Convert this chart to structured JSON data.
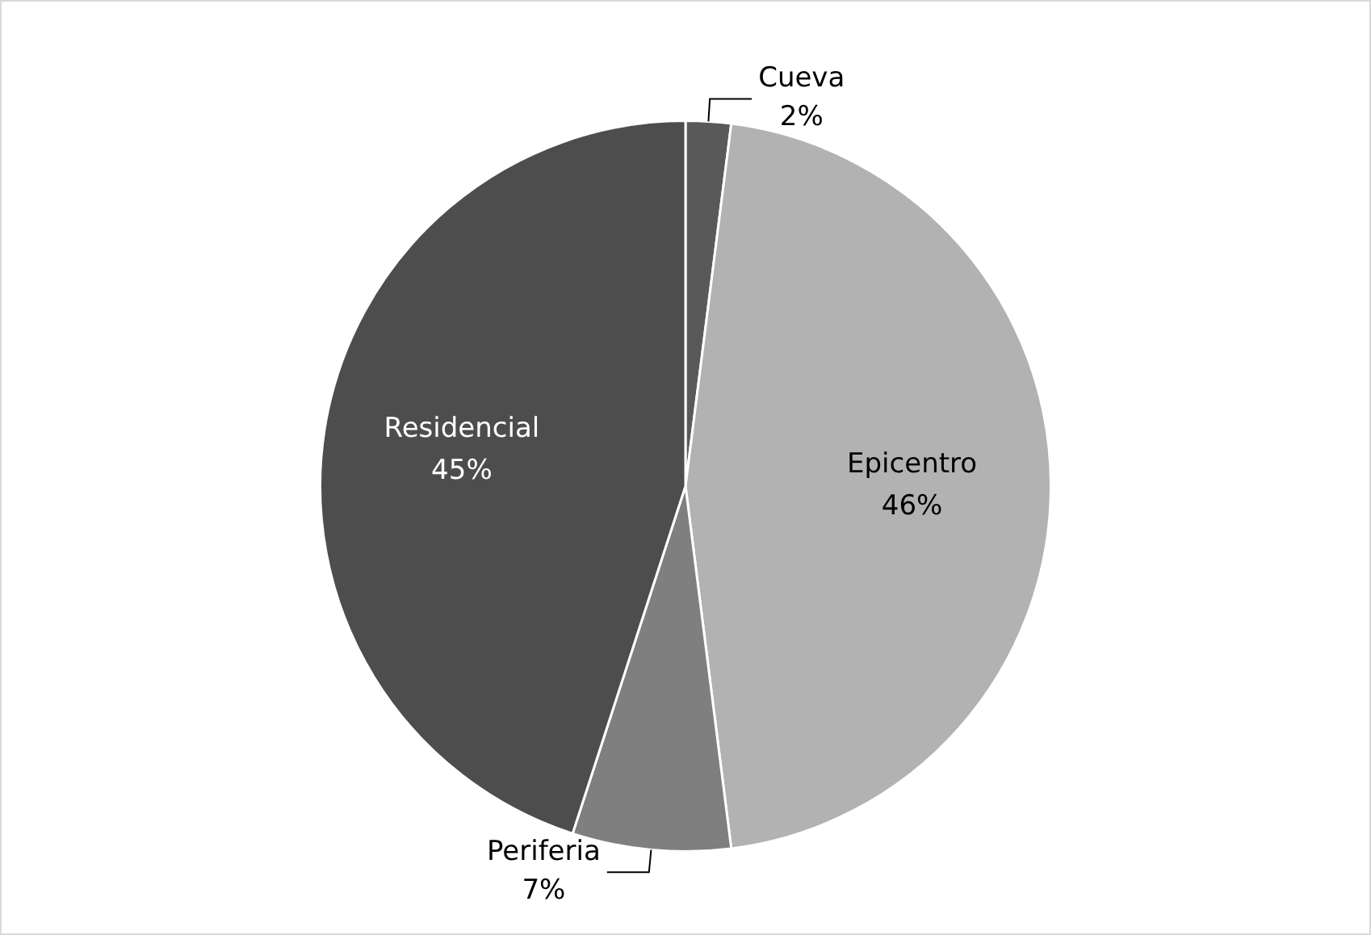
{
  "chart_data": {
    "type": "pie",
    "categories": [
      "Cueva",
      "Epicentro",
      "Periferia",
      "Residencial"
    ],
    "values": [
      2,
      46,
      7,
      45
    ],
    "value_labels": [
      "2%",
      "46%",
      "7%",
      "45%"
    ],
    "colors": [
      "#595959",
      "#b2b2b2",
      "#7f7f7f",
      "#4d4d4d"
    ],
    "legend": false
  }
}
